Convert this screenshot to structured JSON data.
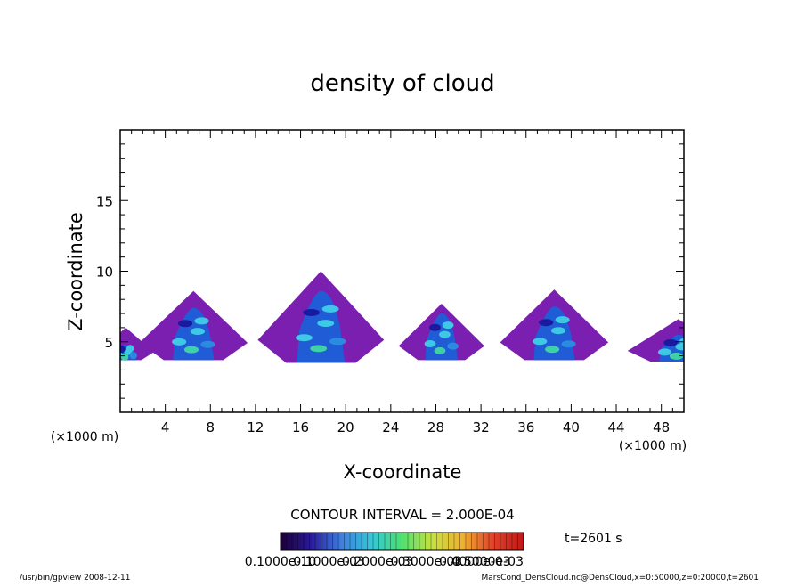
{
  "chart_data": {
    "type": "heatmap",
    "title": "density of cloud",
    "xlabel": "X-coordinate",
    "ylabel": "Z-coordinate",
    "x_unit_left": "(×1000 m)",
    "x_unit_right": "(×1000 m)",
    "xlim": [
      0,
      50
    ],
    "ylim": [
      0,
      20
    ],
    "x_ticks": [
      4,
      8,
      12,
      16,
      20,
      24,
      28,
      32,
      36,
      40,
      44,
      48
    ],
    "y_ticks": [
      5,
      10,
      15
    ],
    "contour_interval_label": "CONTOUR INTERVAL = 2.000E-04",
    "time_label": "t=2601 s",
    "colorbar_tick_labels": [
      "0.1000e-10",
      "0.1000e-03",
      "0.2000e-03",
      "0.3000e-03",
      "0.4000e-03",
      "0.5000e-03"
    ],
    "colorbar_stops": [
      "#1a0033",
      "#2a1a9a",
      "#3f7fe0",
      "#35c6d8",
      "#4ee070",
      "#c8e040",
      "#f0b030",
      "#e0402a",
      "#c01818"
    ],
    "low_fill_color": "#7b1fb0",
    "cloud_cells": [
      {
        "x_center": 6.5,
        "base": 3.7,
        "top": 8.6,
        "half_width": 4.8,
        "core_top": 7.4
      },
      {
        "x_center": 17.8,
        "base": 3.5,
        "top": 10.0,
        "half_width": 5.6,
        "core_top": 8.6
      },
      {
        "x_center": 28.5,
        "base": 3.7,
        "top": 7.7,
        "half_width": 3.8,
        "core_top": 7.0
      },
      {
        "x_center": 38.5,
        "base": 3.7,
        "top": 8.7,
        "half_width": 4.8,
        "core_top": 7.5
      },
      {
        "x_center": 49.5,
        "base": 3.6,
        "top": 6.6,
        "half_width": 4.5,
        "core_top": 5.5
      },
      {
        "x_center": 0.5,
        "base": 3.7,
        "top": 6.0,
        "half_width": 2.5,
        "core_top": 4.8
      }
    ]
  },
  "footer": {
    "left": "/usr/bin/gpview  2008-12-11",
    "right": "MarsCond_DensCloud.nc@DensCloud,x=0:50000,z=0:20000,t=2601"
  }
}
